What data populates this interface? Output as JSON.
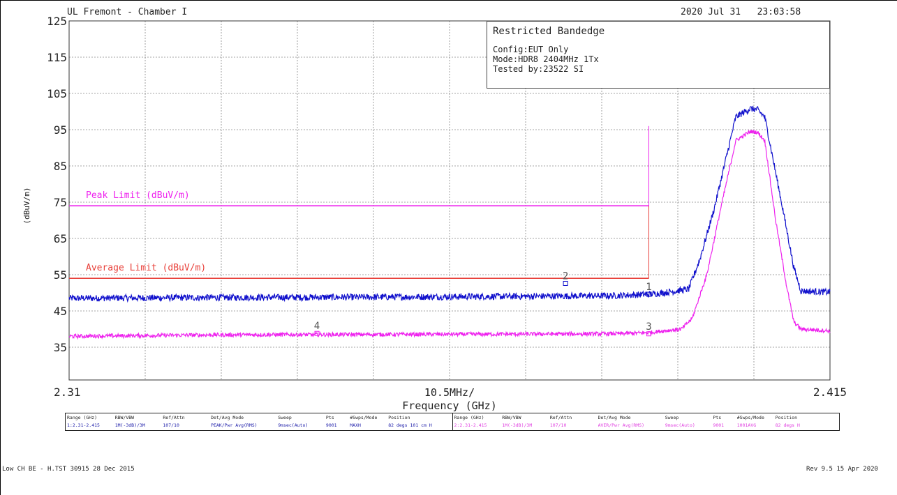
{
  "header": {
    "location": "UL Fremont - Chamber I",
    "datetime": "2020 Jul 31   23:03:58"
  },
  "info_box": {
    "title": "Restricted Bandedge",
    "lines": [
      "Config:EUT Only",
      "Mode:HDR8 2404MHz 1Tx",
      "Tested by:23522 SI"
    ]
  },
  "footer": {
    "left": "Low CH BE - H.TST 30915 28 Dec 2015",
    "right": "Rev 9.5 15 Apr 2020"
  },
  "settings_table": {
    "groups": [
      {
        "columns": [
          {
            "h": "Range (GHz)",
            "v": "1:2.31-2.415"
          },
          {
            "h": "RBW/VBW",
            "v": "1M(-3dB)/3M"
          },
          {
            "h": "Ref/Attn",
            "v": "107/10"
          },
          {
            "h": "Det/Avg Mode",
            "v": "PEAK/Pwr Avg(RMS)"
          },
          {
            "h": "Sweep",
            "v": "9msec(Auto)"
          },
          {
            "h": "Pts",
            "v": "9001"
          },
          {
            "h": "#Swps/Mode",
            "v": "MAXH"
          },
          {
            "h": "Position",
            "v": "82 degs 101 cm H"
          }
        ]
      },
      {
        "columns": [
          {
            "h": "Range (GHz)",
            "v": "2:2.31-2.415"
          },
          {
            "h": "RBW/VBW",
            "v": "1M(-3dB)/3M"
          },
          {
            "h": "Ref/Attn",
            "v": "107/10"
          },
          {
            "h": "Det/Avg Mode",
            "v": "AVER/Pwr Avg(RMS)"
          },
          {
            "h": "Sweep",
            "v": "9msec(Auto)"
          },
          {
            "h": "Pts",
            "v": "9001"
          },
          {
            "h": "#Swps/Mode",
            "v": "1001AVG"
          },
          {
            "h": "Position",
            "v": "82 degs H"
          }
        ]
      }
    ]
  },
  "chart_data": {
    "type": "line",
    "ylabel": "(dBuV/m)",
    "xlabel": "Frequency (GHz)",
    "x_start_label": "2.31",
    "x_end_label": "2.415",
    "x_center_label": "10.5MHz/",
    "xlim": [
      2.31,
      2.415
    ],
    "ylim": [
      30,
      125
    ],
    "y_ticks": [
      125,
      115,
      105,
      95,
      85,
      75,
      65,
      55,
      45,
      35
    ],
    "x_divisions": 10,
    "grid": true,
    "band_edge_ghz": 2.39,
    "limits": [
      {
        "name": "Peak Limit (dBuV/m)",
        "value": 74,
        "color": "#ee22ee"
      },
      {
        "name": "Average Limit (dBuV/m)",
        "value": 54,
        "color": "#e8403a"
      }
    ],
    "series": [
      {
        "color": "#1010cc",
        "x": [
          2.31,
          2.33,
          2.35,
          2.37,
          2.385,
          2.39,
          2.392,
          2.3955,
          2.397,
          2.399,
          2.401,
          2.402,
          2.404,
          2.405,
          2.406,
          2.4085,
          2.41,
          2.411,
          2.415
        ],
        "y": [
          48.5,
          48.7,
          48.8,
          49.0,
          49.2,
          49.6,
          50.0,
          51.0,
          59.0,
          73.0,
          90.0,
          98.5,
          100.8,
          100.5,
          98.5,
          73.0,
          57.0,
          50.5,
          50.2
        ]
      },
      {
        "color": "#ee22ee",
        "x": [
          2.31,
          2.33,
          2.35,
          2.37,
          2.385,
          2.39,
          2.392,
          2.3945,
          2.396,
          2.398,
          2.4,
          2.402,
          2.404,
          2.405,
          2.406,
          2.4075,
          2.409,
          2.41,
          2.411,
          2.415
        ],
        "y": [
          38.0,
          38.4,
          38.5,
          38.6,
          38.7,
          39.0,
          39.5,
          40.0,
          43.0,
          55.0,
          74.0,
          92.0,
          94.5,
          94.3,
          92.0,
          70.0,
          52.0,
          42.0,
          40.0,
          39.5
        ]
      }
    ],
    "markers": [
      {
        "label": "1",
        "x": 2.39,
        "y": 49.6,
        "color": "#1010cc"
      },
      {
        "label": "2",
        "x": 2.3785,
        "y": 52.6,
        "color": "#1010cc"
      },
      {
        "label": "3",
        "x": 2.39,
        "y": 38.7,
        "color": "#ee22ee"
      },
      {
        "label": "4",
        "x": 2.3442,
        "y": 38.8,
        "color": "#ee22ee"
      }
    ],
    "colors": {
      "blue_trace": "#1010cc",
      "magenta_trace": "#ee22ee",
      "grid": "#888888"
    }
  }
}
